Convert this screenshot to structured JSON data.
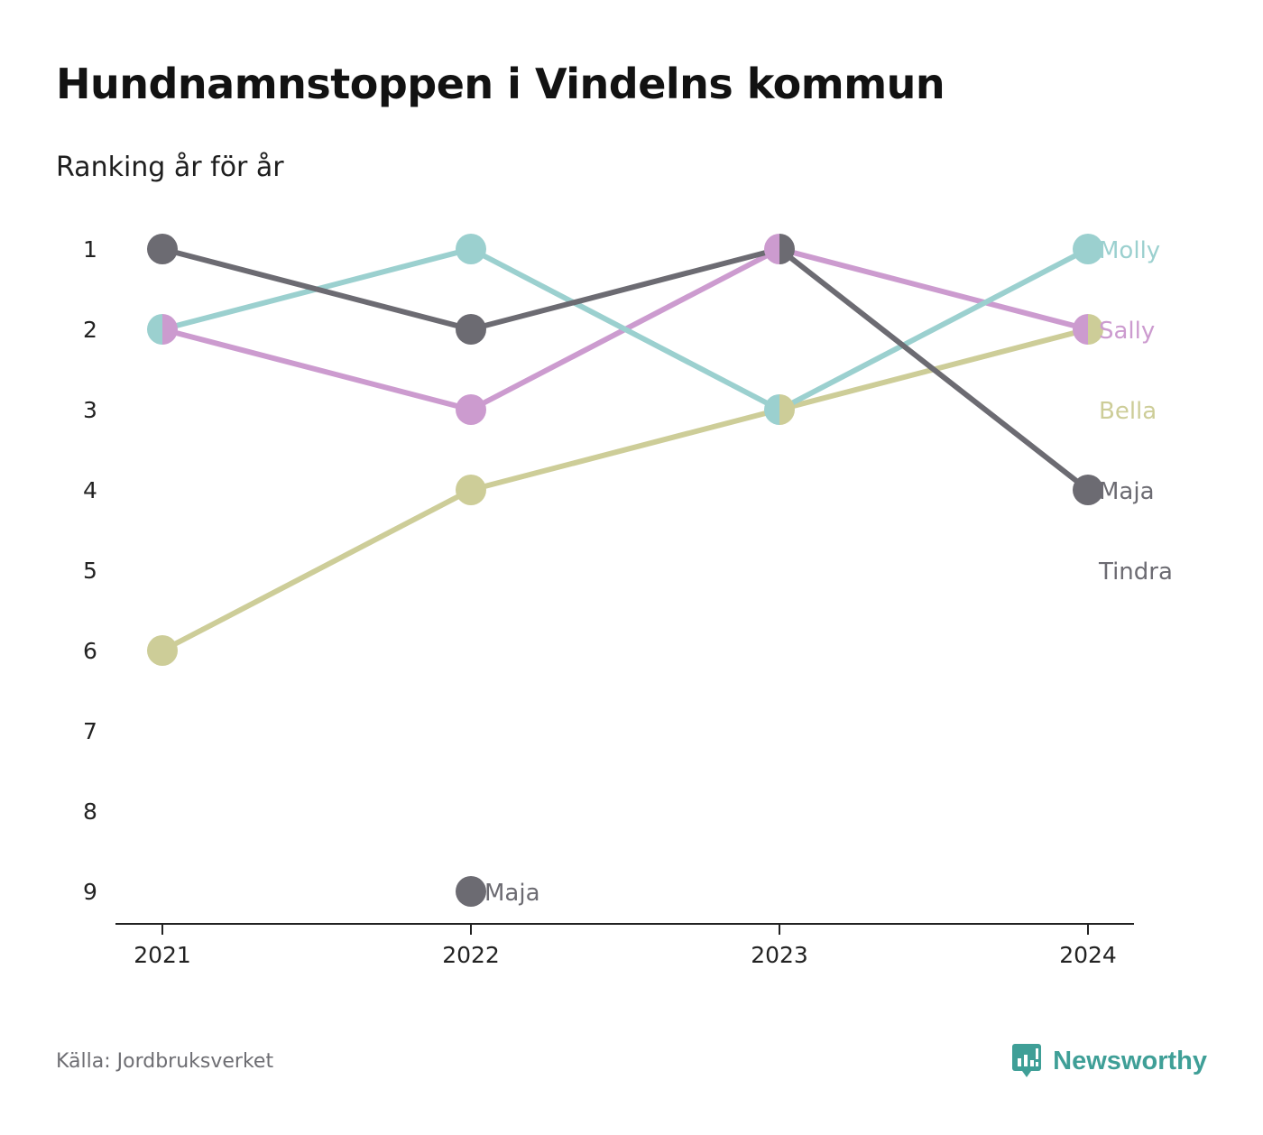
{
  "header": {
    "title": "Hundnamnstoppen i Vindelns kommun",
    "subtitle": "Ranking år för år"
  },
  "footer": {
    "source": "Källa: Jordbruksverket",
    "brand": "Newsworthy",
    "brand_icon": "newsworthy-logo-icon",
    "brand_color": "#3f9f97"
  },
  "chart_data": {
    "type": "line",
    "x": [
      "2021",
      "2022",
      "2023",
      "2024"
    ],
    "y_ticks": [
      1,
      2,
      3,
      4,
      5,
      6,
      7,
      8,
      9
    ],
    "y_reversed": true,
    "ylim": [
      1,
      9
    ],
    "grid": false,
    "series": [
      {
        "name": "Maja",
        "color": "#6c6b72",
        "values": [
          1,
          2,
          1,
          4
        ],
        "end_label": "Maja"
      },
      {
        "name": "Molly",
        "color": "#9bd0cf",
        "values": [
          2,
          1,
          3,
          1
        ],
        "end_label": "Molly"
      },
      {
        "name": "Sally",
        "color": "#cc9bcf",
        "values": [
          2,
          3,
          1,
          2
        ],
        "end_label": "Sally"
      },
      {
        "name": "Bella",
        "color": "#cdcd98",
        "values": [
          6,
          4,
          3,
          2
        ],
        "end_label": "Bella"
      },
      {
        "name": "Tindra",
        "color": "#6c6b72",
        "values": [
          null,
          null,
          null,
          null
        ],
        "end_label": "Tindra"
      }
    ],
    "annotations": [
      {
        "x": "2022",
        "y": 9,
        "text": "Maja",
        "color": "#6c6b72"
      }
    ]
  }
}
